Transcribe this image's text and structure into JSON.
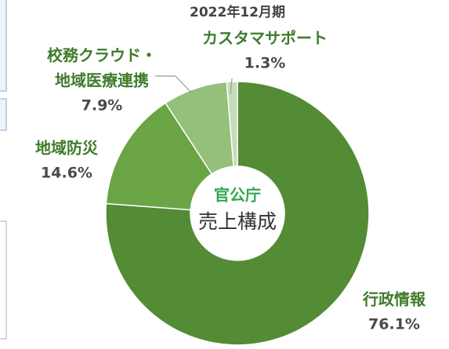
{
  "chart_data": {
    "type": "pie",
    "donut": true,
    "title": "2022年12月期",
    "center_label": [
      "官公庁",
      "売上構成"
    ],
    "categories": [
      "行政情報",
      "地域防災",
      [
        "校務クラウド・",
        "地域医療連携"
      ],
      "カスタマサポート"
    ],
    "values": [
      76.1,
      14.6,
      7.9,
      1.3
    ],
    "value_labels": [
      "76.1%",
      "14.6%",
      "7.9%",
      "1.3%"
    ],
    "colors": [
      "#548b35",
      "#6aa444",
      "#94c07a",
      "#c5dcb6"
    ]
  }
}
